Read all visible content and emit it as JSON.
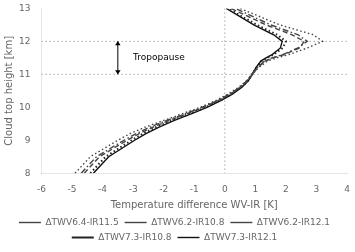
{
  "chart_data": {
    "type": "line",
    "xlabel": "Temperature difference WV-IR [K]",
    "ylabel": "Cloud top height [km]",
    "xlim": [
      -6,
      4
    ],
    "ylim": [
      8,
      13
    ],
    "xticks": [
      -6,
      -5,
      -4,
      -3,
      -2,
      -1,
      0,
      1,
      2,
      3,
      4
    ],
    "yticks": [
      8,
      9,
      10,
      11,
      12,
      13
    ],
    "grid": false,
    "legend": "bottom",
    "series": [
      {
        "name": "ΔTWV6.4-IR11.5",
        "color": "#444444",
        "line_style": "dotted",
        "x": [
          -4.9,
          -4.4,
          -3.5,
          -3.1,
          -2.6,
          -2.0,
          -1.4,
          -0.8,
          -0.3,
          0.1,
          0.45,
          0.7,
          0.9,
          1.1,
          1.4,
          1.7,
          2.1,
          2.7,
          3.2,
          2.9,
          1.8,
          0.5
        ],
        "y": [
          8.0,
          8.5,
          9.0,
          9.2,
          9.4,
          9.6,
          9.8,
          10.0,
          10.2,
          10.4,
          10.6,
          10.8,
          11.0,
          11.2,
          11.4,
          11.5,
          11.6,
          11.8,
          12.0,
          12.2,
          12.5,
          13.0
        ]
      },
      {
        "name": "ΔTWV6.2-IR10.8",
        "color": "#444444",
        "line_style": "dashdot",
        "x": [
          -4.7,
          -4.2,
          -3.3,
          -2.9,
          -2.45,
          -1.9,
          -1.3,
          -0.75,
          -0.25,
          0.15,
          0.48,
          0.72,
          0.88,
          1.05,
          1.3,
          1.55,
          1.9,
          2.4,
          2.7,
          2.4,
          1.5,
          0.35
        ],
        "y": [
          8.0,
          8.5,
          9.0,
          9.2,
          9.4,
          9.6,
          9.8,
          10.0,
          10.2,
          10.4,
          10.6,
          10.8,
          11.0,
          11.2,
          11.4,
          11.5,
          11.6,
          11.8,
          12.0,
          12.2,
          12.5,
          13.0
        ]
      },
      {
        "name": "ΔTWV6.2-IR12.1",
        "color": "#444444",
        "line_style": "dashed",
        "x": [
          -4.6,
          -4.1,
          -3.2,
          -2.8,
          -2.35,
          -1.82,
          -1.25,
          -0.7,
          -0.22,
          0.18,
          0.5,
          0.74,
          0.9,
          1.08,
          1.32,
          1.58,
          1.95,
          2.45,
          2.6,
          2.2,
          1.35,
          0.2
        ],
        "y": [
          8.0,
          8.5,
          9.0,
          9.2,
          9.4,
          9.6,
          9.8,
          10.0,
          10.2,
          10.4,
          10.6,
          10.8,
          11.0,
          11.2,
          11.4,
          11.5,
          11.6,
          11.8,
          12.0,
          12.2,
          12.5,
          13.0
        ]
      },
      {
        "name": "ΔTWV7.3-IR10.8",
        "color": "#222222",
        "line_style": "dotted",
        "x": [
          -4.4,
          -3.9,
          -3.05,
          -2.68,
          -2.25,
          -1.73,
          -1.17,
          -0.63,
          -0.17,
          0.22,
          0.53,
          0.76,
          0.9,
          1.03,
          1.2,
          1.38,
          1.6,
          1.9,
          2.0,
          1.72,
          1.05,
          0.1
        ],
        "y": [
          8.0,
          8.5,
          9.0,
          9.2,
          9.4,
          9.6,
          9.8,
          10.0,
          10.2,
          10.4,
          10.6,
          10.8,
          11.0,
          11.2,
          11.4,
          11.5,
          11.6,
          11.8,
          12.0,
          12.2,
          12.5,
          13.0
        ]
      },
      {
        "name": "ΔTWV7.3-IR12.1",
        "color": "#111111",
        "line_style": "solid",
        "x": [
          -4.3,
          -3.8,
          -2.95,
          -2.58,
          -2.15,
          -1.65,
          -1.1,
          -0.58,
          -0.13,
          0.25,
          0.55,
          0.77,
          0.9,
          1.02,
          1.18,
          1.35,
          1.55,
          1.82,
          1.88,
          1.6,
          0.95,
          0.05
        ],
        "y": [
          8.0,
          8.5,
          9.0,
          9.2,
          9.4,
          9.6,
          9.8,
          10.0,
          10.2,
          10.4,
          10.6,
          10.8,
          11.0,
          11.2,
          11.4,
          11.5,
          11.6,
          11.8,
          12.0,
          12.2,
          12.5,
          13.0
        ]
      }
    ],
    "reference_lines": [
      {
        "axis": "y",
        "value": 11.0,
        "color": "#aaaaaa",
        "line_style": "dotted"
      },
      {
        "axis": "y",
        "value": 12.0,
        "color": "#aaaaaa",
        "line_style": "dotted"
      },
      {
        "axis": "x",
        "value": 0,
        "color": "#aaaaaa",
        "line_style": "dotted"
      }
    ],
    "arrows": [
      {
        "x": -3.5,
        "y_start": 11.0,
        "y_end": 12.0,
        "color": "#000000"
      }
    ],
    "annotations": [
      {
        "text": "Tropopause",
        "x": -3.0,
        "y": 11.5
      }
    ]
  }
}
